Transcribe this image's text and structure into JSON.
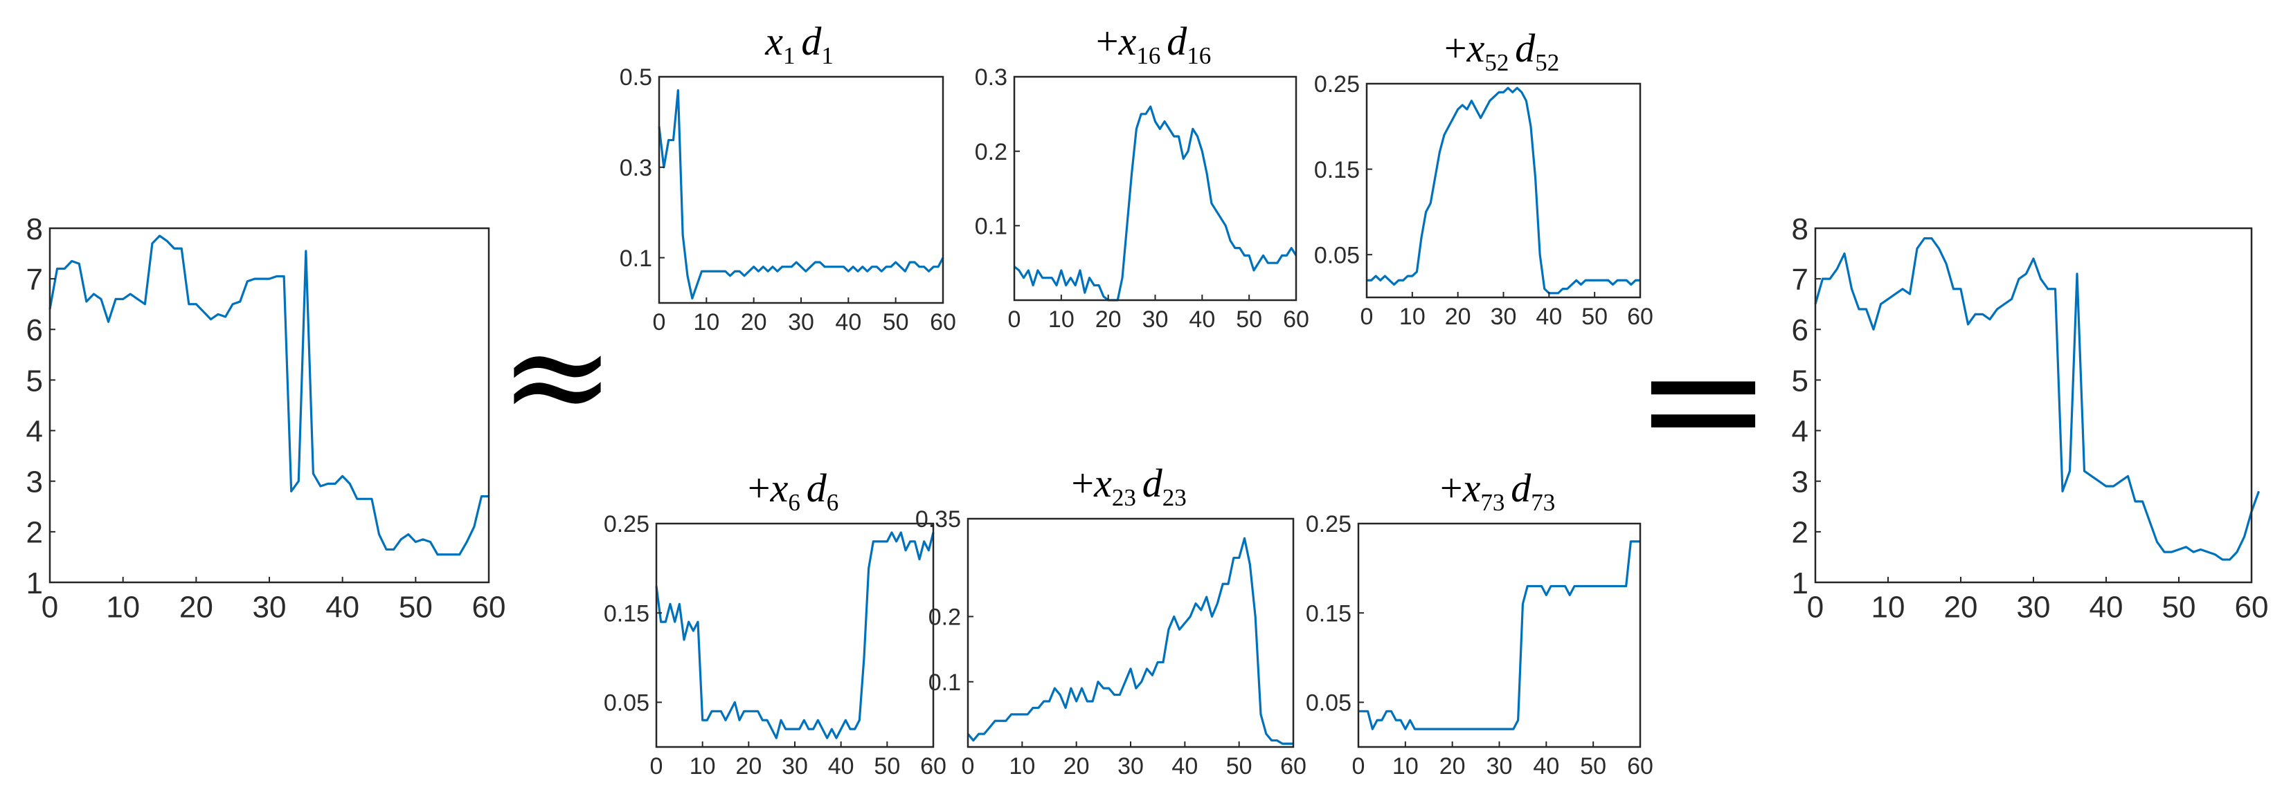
{
  "symbols": {
    "approx": "≈",
    "equals": "="
  },
  "colors": {
    "series": "#0072BD",
    "axes": "#262626",
    "text": "#2b2b2b"
  },
  "chart_data": [
    {
      "id": "input",
      "type": "line",
      "title": "",
      "xlim": [
        0,
        60
      ],
      "ylim": [
        1,
        8
      ],
      "xticks": [
        0,
        10,
        20,
        30,
        40,
        50,
        60
      ],
      "yticks": [
        1,
        2,
        3,
        4,
        5,
        6,
        7,
        8
      ],
      "series": [
        {
          "values": [
            6.4,
            7.2,
            7.2,
            7.35,
            7.3,
            6.55,
            6.7,
            6.6,
            6.15,
            6.6,
            6.6,
            6.7,
            6.6,
            6.5,
            7.7,
            7.85,
            7.75,
            7.6,
            7.6,
            6.5,
            6.5,
            6.35,
            6.2,
            6.3,
            6.25,
            6.5,
            6.55,
            6.95,
            7.0,
            7.0,
            7.0,
            7.05,
            7.05,
            2.8,
            3.0,
            7.55,
            3.15,
            2.9,
            2.95,
            2.95,
            3.1,
            2.95,
            2.65,
            2.65,
            2.65,
            1.95,
            1.65,
            1.65,
            1.85,
            1.95,
            1.8,
            1.85,
            1.8,
            1.55,
            1.55,
            1.55,
            1.55,
            1.8,
            2.1,
            2.7,
            2.7
          ]
        }
      ]
    },
    {
      "id": "d1",
      "type": "line",
      "title": [
        [
          "x",
          "1"
        ],
        [
          "d",
          "1"
        ]
      ],
      "plus": false,
      "xlim": [
        0,
        60
      ],
      "ylim": [
        0.0,
        0.5
      ],
      "xticks": [
        0,
        10,
        20,
        30,
        40,
        50,
        60
      ],
      "yticks": [
        0.1,
        0.3,
        0.5
      ],
      "series": [
        {
          "values": [
            0.39,
            0.3,
            0.36,
            0.36,
            0.47,
            0.15,
            0.06,
            0.01,
            0.04,
            0.07,
            0.07,
            0.07,
            0.07,
            0.07,
            0.07,
            0.06,
            0.07,
            0.07,
            0.06,
            0.07,
            0.08,
            0.07,
            0.08,
            0.07,
            0.08,
            0.07,
            0.08,
            0.08,
            0.08,
            0.09,
            0.08,
            0.07,
            0.08,
            0.09,
            0.09,
            0.08,
            0.08,
            0.08,
            0.08,
            0.08,
            0.07,
            0.08,
            0.07,
            0.08,
            0.07,
            0.08,
            0.08,
            0.07,
            0.08,
            0.08,
            0.09,
            0.08,
            0.07,
            0.09,
            0.09,
            0.08,
            0.08,
            0.07,
            0.08,
            0.08,
            0.1
          ]
        }
      ]
    },
    {
      "id": "d16",
      "type": "line",
      "title": [
        [
          "x",
          "16"
        ],
        [
          "d",
          "16"
        ]
      ],
      "plus": true,
      "xlim": [
        0,
        60
      ],
      "ylim": [
        0.0,
        0.3
      ],
      "xticks": [
        0,
        10,
        20,
        30,
        40,
        50,
        60
      ],
      "yticks": [
        0.1,
        0.2,
        0.3
      ],
      "series": [
        {
          "values": [
            0.045,
            0.04,
            0.03,
            0.04,
            0.02,
            0.04,
            0.03,
            0.03,
            0.03,
            0.02,
            0.04,
            0.02,
            0.03,
            0.02,
            0.04,
            0.01,
            0.03,
            0.02,
            0.02,
            0.005,
            0.0,
            0.0,
            0.0,
            0.03,
            0.1,
            0.17,
            0.23,
            0.25,
            0.25,
            0.26,
            0.24,
            0.23,
            0.24,
            0.23,
            0.22,
            0.22,
            0.19,
            0.2,
            0.23,
            0.22,
            0.2,
            0.17,
            0.13,
            0.12,
            0.11,
            0.1,
            0.08,
            0.07,
            0.07,
            0.06,
            0.06,
            0.04,
            0.05,
            0.06,
            0.05,
            0.05,
            0.05,
            0.06,
            0.06,
            0.07,
            0.06
          ]
        }
      ]
    },
    {
      "id": "d52",
      "type": "line",
      "title": [
        [
          "x",
          "52"
        ],
        [
          "d",
          "52"
        ]
      ],
      "plus": true,
      "xlim": [
        0,
        60
      ],
      "ylim": [
        0.0,
        0.25
      ],
      "xticks": [
        0,
        10,
        20,
        30,
        40,
        50,
        60
      ],
      "yticks": [
        0.05,
        0.15,
        0.25
      ],
      "series": [
        {
          "values": [
            0.02,
            0.02,
            0.025,
            0.02,
            0.025,
            0.02,
            0.015,
            0.02,
            0.02,
            0.025,
            0.025,
            0.03,
            0.07,
            0.1,
            0.11,
            0.14,
            0.17,
            0.19,
            0.2,
            0.21,
            0.22,
            0.225,
            0.22,
            0.23,
            0.22,
            0.21,
            0.22,
            0.23,
            0.235,
            0.24,
            0.24,
            0.245,
            0.24,
            0.245,
            0.24,
            0.23,
            0.2,
            0.14,
            0.05,
            0.01,
            0.005,
            0.005,
            0.005,
            0.01,
            0.01,
            0.015,
            0.02,
            0.015,
            0.02,
            0.02,
            0.02,
            0.02,
            0.02,
            0.02,
            0.015,
            0.02,
            0.02,
            0.02,
            0.015,
            0.02,
            0.02
          ]
        }
      ]
    },
    {
      "id": "d6",
      "type": "line",
      "title": [
        [
          "x",
          "6"
        ],
        [
          "d",
          "6"
        ]
      ],
      "plus": true,
      "xlim": [
        0,
        60
      ],
      "ylim": [
        0.0,
        0.25
      ],
      "xticks": [
        0,
        10,
        20,
        30,
        40,
        50,
        60
      ],
      "yticks": [
        0.05,
        0.15,
        0.25
      ],
      "series": [
        {
          "values": [
            0.18,
            0.14,
            0.14,
            0.16,
            0.14,
            0.16,
            0.12,
            0.14,
            0.13,
            0.14,
            0.03,
            0.03,
            0.04,
            0.04,
            0.04,
            0.03,
            0.04,
            0.05,
            0.03,
            0.04,
            0.04,
            0.04,
            0.04,
            0.03,
            0.03,
            0.02,
            0.01,
            0.03,
            0.02,
            0.02,
            0.02,
            0.02,
            0.03,
            0.02,
            0.02,
            0.03,
            0.02,
            0.01,
            0.02,
            0.01,
            0.02,
            0.03,
            0.02,
            0.02,
            0.03,
            0.1,
            0.2,
            0.23,
            0.23,
            0.23,
            0.23,
            0.24,
            0.23,
            0.24,
            0.22,
            0.23,
            0.23,
            0.21,
            0.23,
            0.22,
            0.24
          ]
        }
      ]
    },
    {
      "id": "d23",
      "type": "line",
      "title": [
        [
          "x",
          "23"
        ],
        [
          "d",
          "23"
        ]
      ],
      "plus": true,
      "xlim": [
        0,
        60
      ],
      "ylim": [
        0.0,
        0.35
      ],
      "xticks": [
        0,
        10,
        20,
        30,
        40,
        50,
        60
      ],
      "yticks": [
        0.1,
        0.2,
        0.35
      ],
      "series": [
        {
          "values": [
            0.02,
            0.01,
            0.02,
            0.02,
            0.03,
            0.04,
            0.04,
            0.04,
            0.05,
            0.05,
            0.05,
            0.05,
            0.06,
            0.06,
            0.07,
            0.07,
            0.09,
            0.08,
            0.06,
            0.09,
            0.07,
            0.09,
            0.07,
            0.07,
            0.1,
            0.09,
            0.09,
            0.08,
            0.08,
            0.1,
            0.12,
            0.09,
            0.1,
            0.12,
            0.11,
            0.13,
            0.13,
            0.18,
            0.2,
            0.18,
            0.19,
            0.2,
            0.22,
            0.21,
            0.23,
            0.2,
            0.22,
            0.25,
            0.25,
            0.29,
            0.29,
            0.32,
            0.28,
            0.2,
            0.05,
            0.02,
            0.01,
            0.01,
            0.005,
            0.005,
            0.005
          ]
        }
      ]
    },
    {
      "id": "d73",
      "type": "line",
      "title": [
        [
          "x",
          "73"
        ],
        [
          "d",
          "73"
        ]
      ],
      "plus": true,
      "xlim": [
        0,
        60
      ],
      "ylim": [
        0.0,
        0.25
      ],
      "xticks": [
        0,
        10,
        20,
        30,
        40,
        50,
        60
      ],
      "yticks": [
        0.05,
        0.15,
        0.25
      ],
      "series": [
        {
          "values": [
            0.04,
            0.04,
            0.04,
            0.02,
            0.03,
            0.03,
            0.04,
            0.04,
            0.03,
            0.03,
            0.02,
            0.03,
            0.02,
            0.02,
            0.02,
            0.02,
            0.02,
            0.02,
            0.02,
            0.02,
            0.02,
            0.02,
            0.02,
            0.02,
            0.02,
            0.02,
            0.02,
            0.02,
            0.02,
            0.02,
            0.02,
            0.02,
            0.02,
            0.02,
            0.03,
            0.16,
            0.18,
            0.18,
            0.18,
            0.18,
            0.17,
            0.18,
            0.18,
            0.18,
            0.18,
            0.17,
            0.18,
            0.18,
            0.18,
            0.18,
            0.18,
            0.18,
            0.18,
            0.18,
            0.18,
            0.18,
            0.18,
            0.18,
            0.23,
            0.23,
            0.23
          ]
        }
      ]
    },
    {
      "id": "output",
      "type": "line",
      "title": "",
      "xlim": [
        0,
        60
      ],
      "ylim": [
        1,
        8
      ],
      "xticks": [
        0,
        10,
        20,
        30,
        40,
        50,
        60
      ],
      "yticks": [
        1,
        2,
        3,
        4,
        5,
        6,
        7,
        8
      ],
      "series": [
        {
          "values": [
            6.5,
            7.0,
            7.0,
            7.2,
            7.5,
            6.8,
            6.4,
            6.4,
            6.0,
            6.5,
            6.6,
            6.7,
            6.8,
            6.7,
            7.6,
            7.8,
            7.8,
            7.6,
            7.3,
            6.8,
            6.8,
            6.1,
            6.3,
            6.3,
            6.2,
            6.4,
            6.5,
            6.6,
            7.0,
            7.1,
            7.4,
            7.0,
            6.8,
            6.8,
            2.8,
            3.2,
            7.1,
            3.2,
            3.1,
            3.0,
            2.9,
            2.9,
            3.0,
            3.1,
            2.6,
            2.6,
            2.2,
            1.8,
            1.6,
            1.6,
            1.65,
            1.7,
            1.6,
            1.65,
            1.6,
            1.55,
            1.45,
            1.45,
            1.6,
            1.9,
            2.4,
            2.8
          ]
        }
      ]
    }
  ]
}
